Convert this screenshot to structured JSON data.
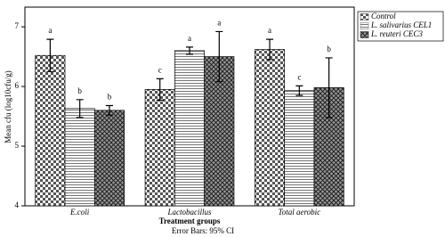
{
  "chart_data": {
    "type": "bar",
    "x_label": "Treatment groups",
    "y_label": "Mean cfu (log10cfu/g)",
    "footnote": "Error Bars: 95% CI",
    "categories": [
      "E.coli",
      "Lactobacillus",
      "Total aerobic"
    ],
    "series": [
      {
        "name": "Control",
        "color": "#555555",
        "pattern": "checker",
        "values": [
          6.52,
          5.95,
          6.62
        ],
        "errors": [
          0.27,
          0.18,
          0.17
        ],
        "labels": [
          "a",
          "c",
          "a"
        ]
      },
      {
        "name": "L. salivarius CEL1",
        "color": "#777777",
        "pattern": "hlines",
        "values": [
          5.63,
          6.6,
          5.93
        ],
        "errors": [
          0.15,
          0.06,
          0.08
        ],
        "labels": [
          "b",
          "a",
          "c"
        ]
      },
      {
        "name": "L. reuteri CEC3",
        "color": "#333333",
        "pattern": "crosshatch",
        "values": [
          5.6,
          6.5,
          5.98
        ],
        "errors": [
          0.08,
          0.42,
          0.5
        ],
        "labels": [
          "b",
          "a",
          "b"
        ]
      }
    ],
    "ylim": [
      4,
      7.33
    ],
    "yticks": [
      4,
      5,
      6,
      7
    ],
    "legend": "top-right"
  }
}
